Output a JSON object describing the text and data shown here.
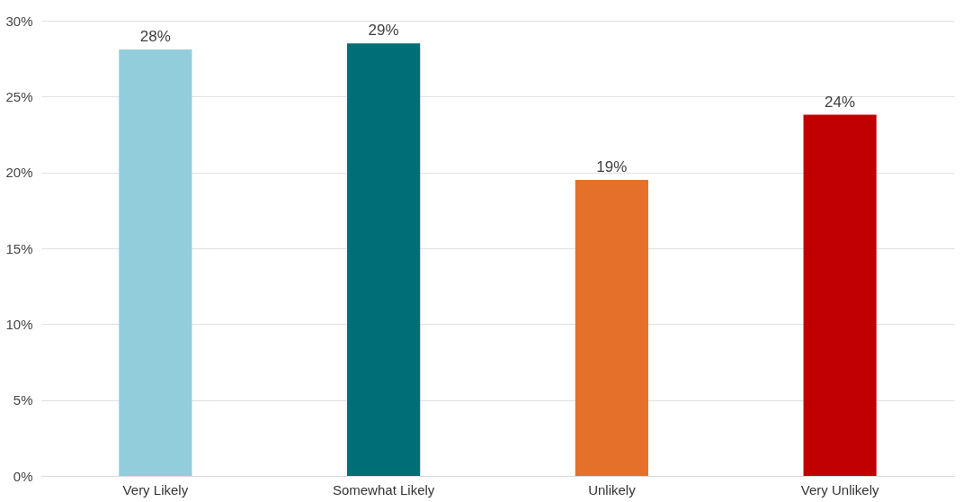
{
  "chart_data": {
    "type": "bar",
    "categories": [
      "Very Likely",
      "Somewhat Likely",
      "Unlikely",
      "Very Unlikely"
    ],
    "values": [
      28.1,
      28.5,
      19.5,
      23.8
    ],
    "colors": [
      "#92cddc",
      "#006e75",
      "#e4702a",
      "#c00000"
    ],
    "value_labels": [
      "28%",
      "29%",
      "19%",
      "24%"
    ],
    "ylim": [
      0,
      30
    ],
    "yticks": [
      {
        "value": 0,
        "label": "0%"
      },
      {
        "value": 5,
        "label": "5%"
      },
      {
        "value": 10,
        "label": "10%"
      },
      {
        "value": 15,
        "label": "15%"
      },
      {
        "value": 20,
        "label": "20%"
      },
      {
        "value": 25,
        "label": "25%"
      },
      {
        "value": 30,
        "label": "30%"
      }
    ],
    "grid": "y"
  }
}
